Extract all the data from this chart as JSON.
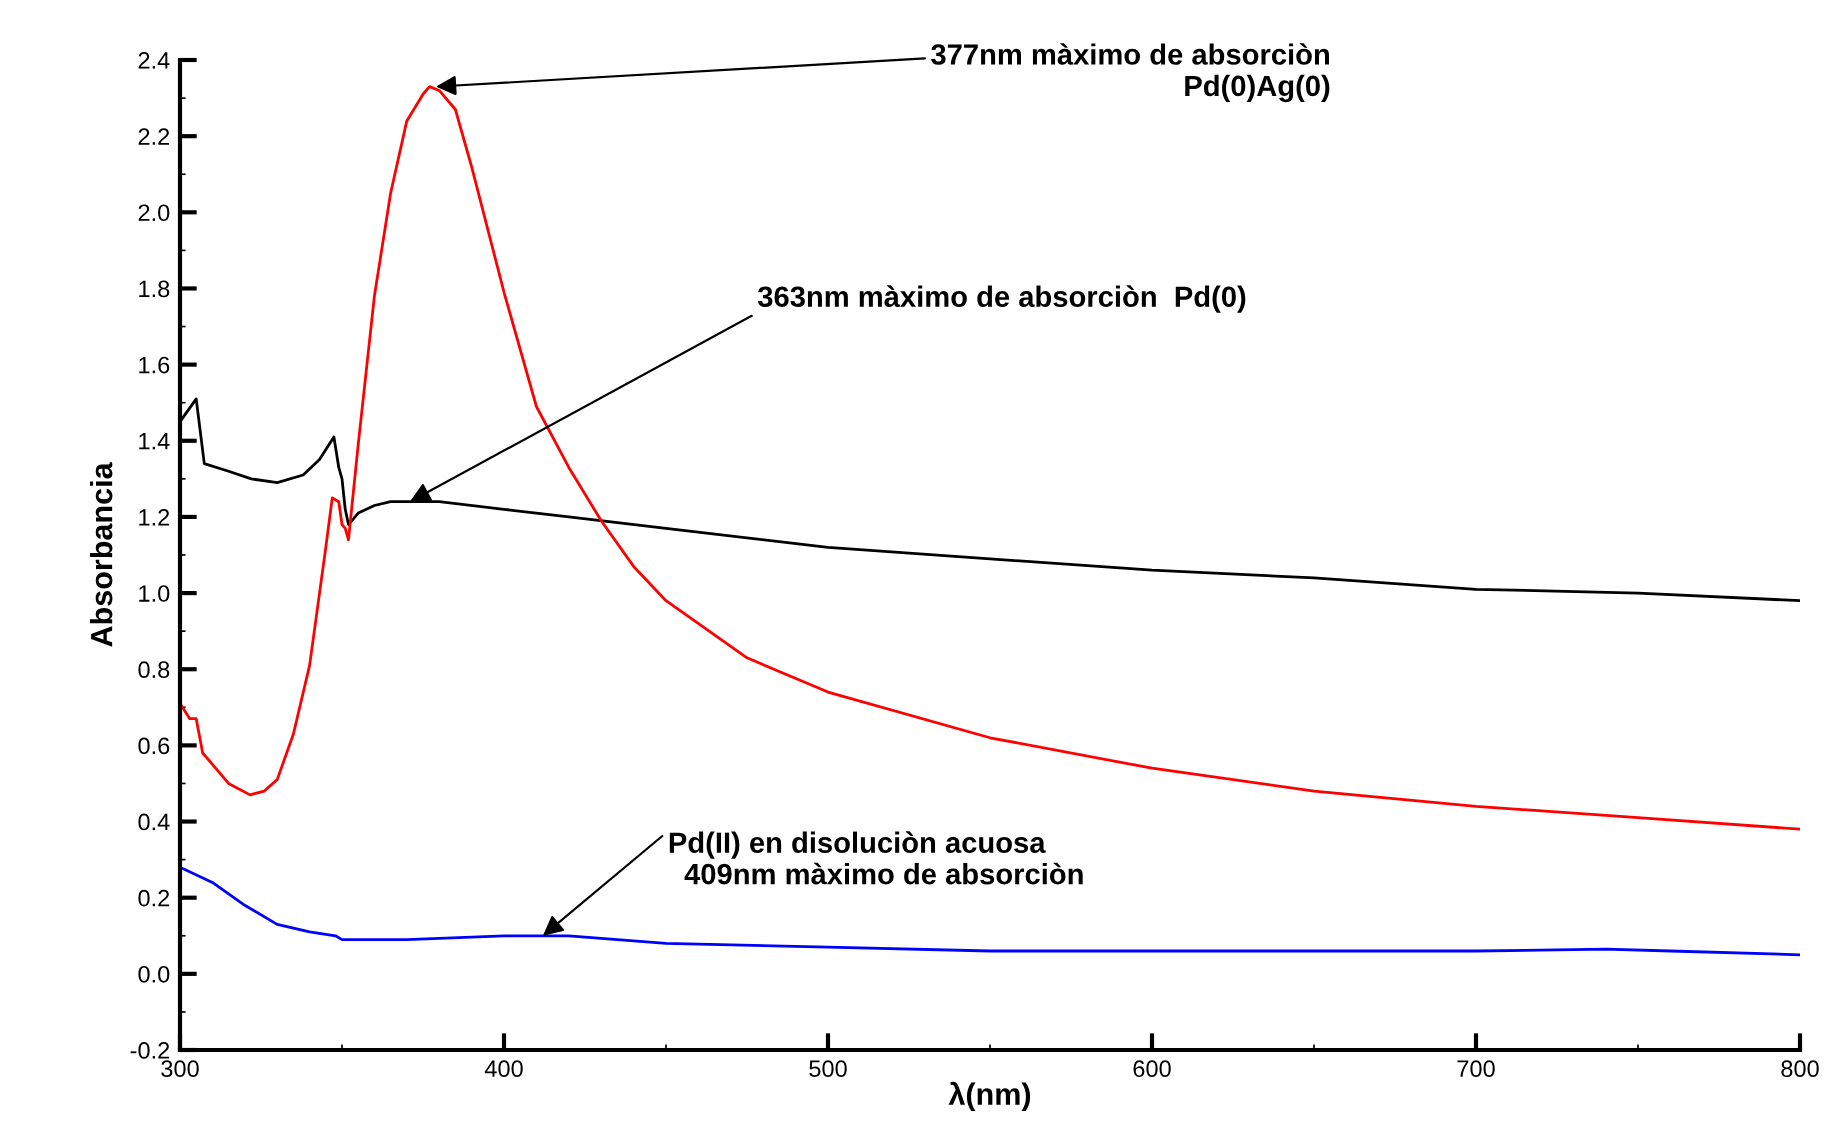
{
  "chart_data": {
    "type": "line",
    "xlabel": "λ(nm)",
    "ylabel": "Absorbancia",
    "xlim": [
      300,
      800
    ],
    "ylim": [
      -0.2,
      2.4
    ],
    "xticks": [
      300,
      400,
      500,
      600,
      700,
      800
    ],
    "yticks": [
      -0.2,
      0.2,
      0.4,
      0.6,
      0.8,
      1.2,
      1.4,
      1.6,
      1.8,
      2.2,
      2.4,
      {
        "value": 0,
        "label": "0.0"
      },
      {
        "value": 1,
        "label": "1.0"
      },
      {
        "value": 2,
        "label": "2.0"
      }
    ],
    "grid": false,
    "marker": "none",
    "line_style": "solid",
    "series": [
      {
        "color": "#000000",
        "x": [
          300,
          305,
          307.5,
          315,
          322,
          330,
          338,
          343,
          347.5,
          349,
          350,
          351,
          352,
          355,
          360,
          365,
          380,
          400,
          420,
          450,
          500,
          550,
          600,
          650,
          700,
          750,
          800
        ],
        "values": [
          1.45,
          1.51,
          1.34,
          1.32,
          1.3,
          1.29,
          1.31,
          1.35,
          1.41,
          1.33,
          1.3,
          1.22,
          1.18,
          1.21,
          1.23,
          1.24,
          1.24,
          1.22,
          1.2,
          1.17,
          1.12,
          1.09,
          1.06,
          1.04,
          1.01,
          1.0,
          0.98
        ]
      },
      {
        "color": "#ff0000",
        "x": [
          300,
          303,
          305,
          307,
          310,
          315,
          321.6,
          326,
          330,
          335,
          340,
          345,
          347,
          349,
          350,
          351,
          352,
          355,
          360,
          365,
          370,
          375,
          377,
          380,
          385,
          390,
          400,
          410,
          420,
          430,
          440,
          450,
          475,
          500,
          550,
          600,
          650,
          700,
          750,
          800
        ],
        "values": [
          0.71,
          0.67,
          0.67,
          0.58,
          0.55,
          0.5,
          0.47,
          0.48,
          0.51,
          0.63,
          0.81,
          1.12,
          1.25,
          1.24,
          1.18,
          1.17,
          1.14,
          1.39,
          1.78,
          2.05,
          2.24,
          2.31,
          2.33,
          2.32,
          2.27,
          2.12,
          1.79,
          1.49,
          1.33,
          1.19,
          1.07,
          0.98,
          0.83,
          0.74,
          0.62,
          0.54,
          0.48,
          0.44,
          0.41,
          0.38
        ]
      },
      {
        "color": "#0000ff",
        "x": [
          300,
          310,
          320,
          330,
          340,
          348,
          350,
          370,
          400,
          409,
          420,
          450,
          500,
          550,
          600,
          650,
          700,
          740,
          760,
          800
        ],
        "values": [
          0.28,
          0.24,
          0.18,
          0.13,
          0.11,
          0.1,
          0.09,
          0.09,
          0.1,
          0.1,
          0.1,
          0.08,
          0.07,
          0.06,
          0.06,
          0.06,
          0.06,
          0.065,
          0.06,
          0.05
        ]
      }
    ],
    "annotations": [
      {
        "text": "377nm màximo de absorciòn\nPd(0)Ag(0)",
        "x": 379,
        "y": 2.33
      },
      {
        "text": "363nm màximo de absorciòn  Pd(0)",
        "x": 371,
        "y": 1.24
      },
      {
        "text": "Pd(II) en disoluciòn acuosa\n  409nm màximo de absorciòn",
        "x": 412,
        "y": 0.1
      }
    ]
  }
}
